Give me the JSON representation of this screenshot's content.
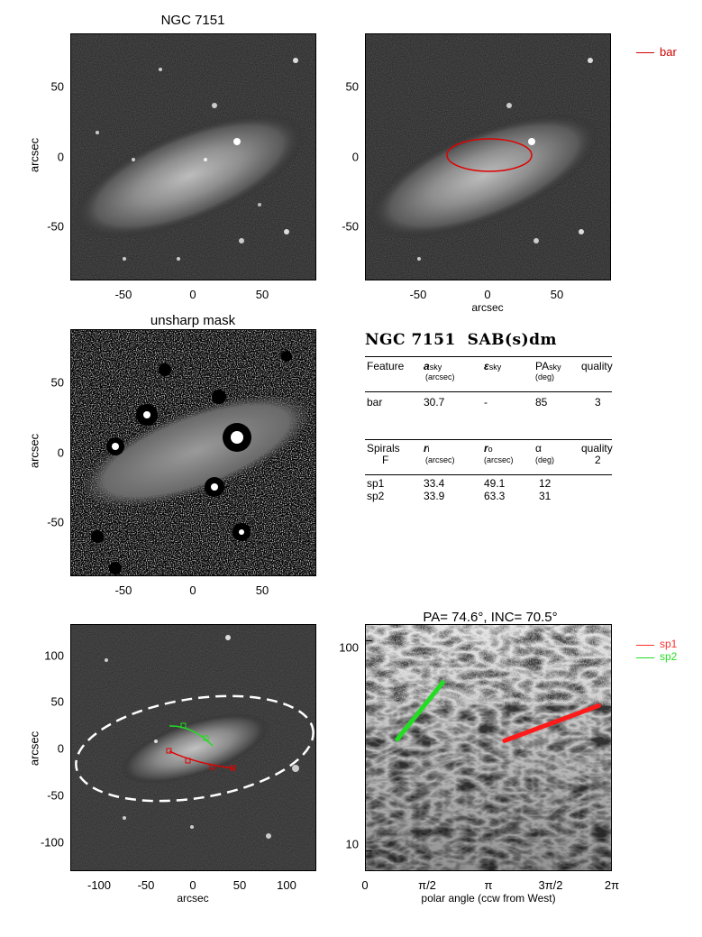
{
  "galaxy": "NGC 7151",
  "panel1": {
    "title": "NGC 7151",
    "ylabel": "arcsec",
    "yticks": [
      "50",
      "0",
      "-50"
    ],
    "xticks": [
      "-50",
      "0",
      "50"
    ]
  },
  "panel2": {
    "xlabel": "arcsec",
    "yticks": [
      "50",
      "0",
      "-50"
    ],
    "xticks": [
      "-50",
      "0",
      "50"
    ],
    "legend": [
      {
        "label": "bar",
        "color": "#d40000"
      }
    ]
  },
  "panel3": {
    "title": "unsharp mask",
    "ylabel": "arcsec",
    "yticks": [
      "50",
      "0",
      "-50"
    ],
    "xticks": [
      "-50",
      "0",
      "50"
    ]
  },
  "table": {
    "heading_name": "NGC 7151",
    "heading_type": "SAB(s)dm",
    "bar_header": {
      "c1": "Feature",
      "c2": "a",
      "c2_sub": "sky",
      "c2_unit": "(arcsec)",
      "c3": "ε",
      "c3_sub": "sky",
      "c4": "PA",
      "c4_sub": "sky",
      "c4_unit": "(deg)",
      "c5": "quality"
    },
    "bar_row": {
      "feature": "bar",
      "a_sky": "30.7",
      "eps_sky": "-",
      "pa_sky": "85",
      "quality": "3"
    },
    "spiral_header": {
      "c1": "Spirals",
      "c1_b": "F",
      "c2": "r",
      "c2_sub": "i",
      "c2_unit": "(arcsec)",
      "c3": "r",
      "c3_sub": "o",
      "c3_unit": "(arcsec)",
      "c4": "α",
      "c4_unit": "(deg)",
      "c5": "quality",
      "c5_b": "2"
    },
    "spiral_rows": [
      {
        "name": "sp1",
        "r_i": "33.4",
        "r_o": "49.1",
        "alpha": "12"
      },
      {
        "name": "sp2",
        "r_i": "33.9",
        "r_o": "63.3",
        "alpha": "31"
      }
    ]
  },
  "panel5": {
    "xlabel": "arcsec",
    "ylabel": "arcsec",
    "yticks": [
      "100",
      "50",
      "0",
      "-50",
      "-100"
    ],
    "xticks": [
      "-100",
      "-50",
      "0",
      "50",
      "100"
    ]
  },
  "panel6": {
    "title": "PA=  74.6°, INC=  70.5°",
    "xlabel": "polar angle (ccw from West)",
    "xticks": [
      "0",
      "π/2",
      "π",
      "3π/2",
      "2π"
    ],
    "yticks": [
      "100",
      "10"
    ],
    "yscale": "log",
    "legend": [
      {
        "label": "sp1",
        "color": "#ff3030"
      },
      {
        "label": "sp2",
        "color": "#22dd22"
      }
    ]
  },
  "chart_data": {
    "type": "scatter",
    "xlabel": "polar angle (ccw from West)",
    "ylabel": "",
    "xlim": [
      0,
      6.2832
    ],
    "ylim": [
      8,
      120
    ],
    "yscale": "log",
    "series": [
      {
        "name": "sp1",
        "x": [
          3.55,
          5.95
        ],
        "y": [
          33.4,
          49.1
        ],
        "color": "#ff1a1a"
      },
      {
        "name": "sp2",
        "x": [
          0.82,
          1.98
        ],
        "y": [
          33.9,
          63.3
        ],
        "color": "#22dd22"
      }
    ]
  }
}
